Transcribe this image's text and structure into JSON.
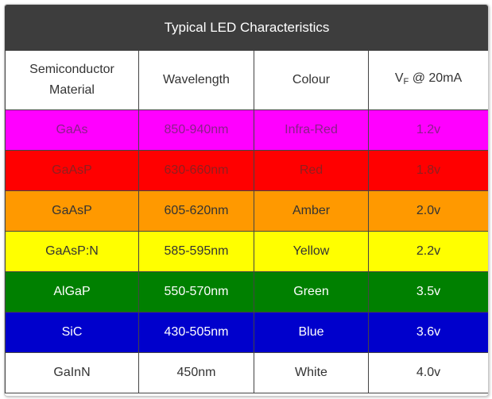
{
  "table": {
    "title": "Typical LED Characteristics",
    "headers": {
      "material": "Semiconductor Material",
      "wavelength": "Wavelength",
      "colour": "Colour",
      "vf_prefix": "V",
      "vf_subscript": "F",
      "vf_suffix": " @ 20mA"
    },
    "rows": [
      {
        "material": "GaAs",
        "wavelength": "850-940nm",
        "colour": "Infra-Red",
        "vf": "1.2v",
        "bg": "#ff00ff",
        "text": "#8a1f8a"
      },
      {
        "material": "GaAsP",
        "wavelength": "630-660nm",
        "colour": "Red",
        "vf": "1.8v",
        "bg": "#ff0000",
        "text": "#8f1f1f"
      },
      {
        "material": "GaAsP",
        "wavelength": "605-620nm",
        "colour": "Amber",
        "vf": "2.0v",
        "bg": "#ff9900",
        "text": "#333333"
      },
      {
        "material": "GaAsP:N",
        "wavelength": "585-595nm",
        "colour": "Yellow",
        "vf": "2.2v",
        "bg": "#ffff00",
        "text": "#333333"
      },
      {
        "material": "AlGaP",
        "wavelength": "550-570nm",
        "colour": "Green",
        "vf": "3.5v",
        "bg": "#008000",
        "text": "#ffffff"
      },
      {
        "material": "SiC",
        "wavelength": "430-505nm",
        "colour": "Blue",
        "vf": "3.6v",
        "bg": "#0000cc",
        "text": "#ffffff"
      },
      {
        "material": "GaInN",
        "wavelength": "450nm",
        "colour": "White",
        "vf": "4.0v",
        "bg": "#ffffff",
        "text": "#333333"
      }
    ]
  }
}
